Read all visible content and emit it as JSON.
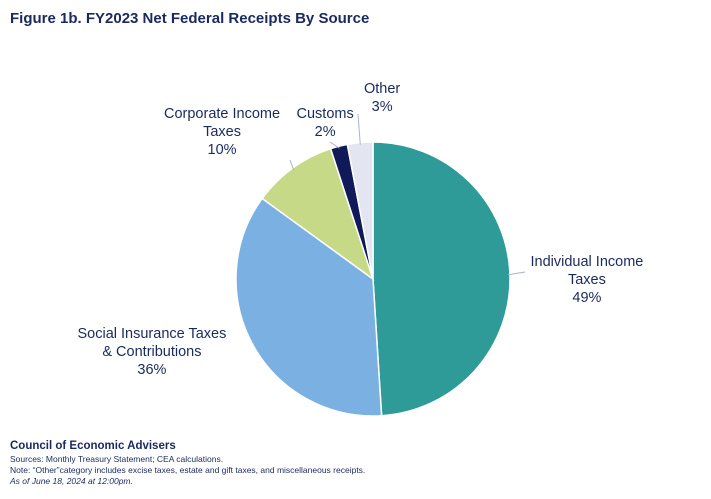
{
  "title": "Figure 1b. FY2023 Net Federal Receipts By Source",
  "chart_data": {
    "type": "pie",
    "title": "Figure 1b. FY2023 Net Federal Receipts By Source",
    "slices": [
      {
        "name_lines": [
          "Individual Income",
          "Taxes"
        ],
        "label": "49%",
        "value": 49,
        "color": "#2e9b98"
      },
      {
        "name_lines": [
          "Social Insurance Taxes",
          "& Contributions"
        ],
        "label": "36%",
        "value": 36,
        "color": "#7ab0e2"
      },
      {
        "name_lines": [
          "Corporate Income",
          "Taxes"
        ],
        "label": "10%",
        "value": 10,
        "color": "#c5d987"
      },
      {
        "name_lines": [
          "Customs"
        ],
        "label": "2%",
        "value": 2,
        "color": "#101a5a"
      },
      {
        "name_lines": [
          "Other"
        ],
        "label": "3%",
        "value": 3,
        "color": "#e3e6f0"
      }
    ]
  },
  "footer": {
    "org": "Council of Economic Advisers",
    "sources": "Sources: Monthly Treasury Statement; CEA calculations.",
    "note": "Note: “Other”category includes excise taxes, estate and gift taxes, and miscellaneous receipts.",
    "as_of": "As of June 18, 2024 at 12:00pm."
  }
}
